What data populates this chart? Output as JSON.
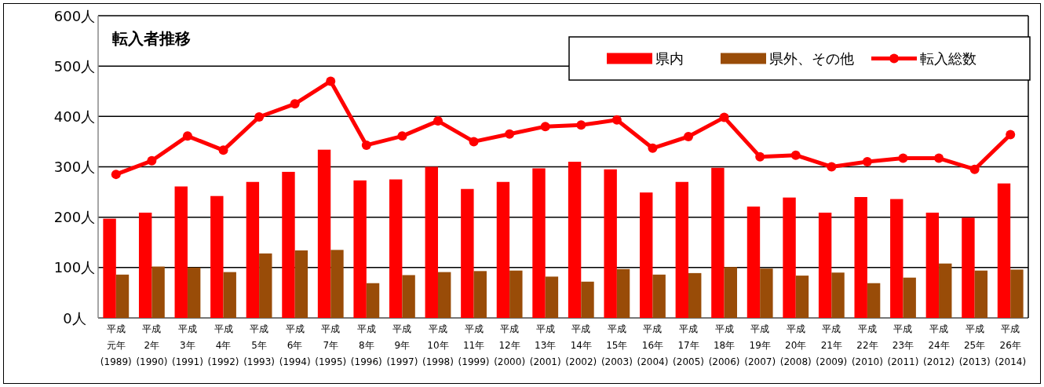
{
  "chart_data": {
    "type": "bar",
    "title": "転入者推移",
    "categories": [
      "平成元年(1989)",
      "平成2年(1990)",
      "平成3年(1991)",
      "平成4年(1992)",
      "平成5年(1993)",
      "平成6年(1994)",
      "平成7年(1995)",
      "平成8年(1996)",
      "平成9年(1997)",
      "平成10年(1998)",
      "平成11年(1999)",
      "平成12年(2000)",
      "平成13年(2001)",
      "平成14年(2002)",
      "平成15年(2003)",
      "平成16年(2004)",
      "平成17年(2005)",
      "平成18年(2006)",
      "平成19年(2007)",
      "平成20年(2008)",
      "平成21年(2009)",
      "平成22年(2010)",
      "平成23年(2011)",
      "平成24年(2012)",
      "平成25年(2013)",
      "平成26年(2014)"
    ],
    "series": [
      {
        "name": "県内",
        "color": "#ff0000",
        "values": [
          197,
          209,
          261,
          242,
          270,
          290,
          334,
          273,
          275,
          300,
          256,
          270,
          297,
          310,
          295,
          249,
          270,
          298,
          221,
          239,
          209,
          240,
          236,
          209,
          199,
          267
        ]
      },
      {
        "name": "県外、その他",
        "color": "#994c08",
        "values": [
          86,
          102,
          100,
          91,
          128,
          134,
          135,
          69,
          85,
          91,
          93,
          94,
          82,
          72,
          97,
          86,
          89,
          101,
          98,
          84,
          90,
          69,
          80,
          108,
          94,
          96
        ]
      },
      {
        "name": "転入総数",
        "type": "line",
        "color": "#ff0000",
        "values": [
          285,
          312,
          361,
          333,
          399,
          425,
          470,
          343,
          361,
          391,
          350,
          365,
          380,
          383,
          393,
          337,
          360,
          398,
          320,
          323,
          300,
          310,
          317,
          317,
          295,
          364
        ]
      }
    ],
    "ylim": [
      0,
      600
    ],
    "yticks": [
      {
        "value": 0,
        "label": "0人"
      },
      {
        "value": 100,
        "label": "100人"
      },
      {
        "value": 200,
        "label": "200人"
      },
      {
        "value": 300,
        "label": "300人"
      },
      {
        "value": 400,
        "label": "400人"
      },
      {
        "value": 500,
        "label": "500人"
      },
      {
        "value": 600,
        "label": "600人"
      }
    ],
    "grid": "y",
    "legend": "top right",
    "marker": "circle"
  }
}
